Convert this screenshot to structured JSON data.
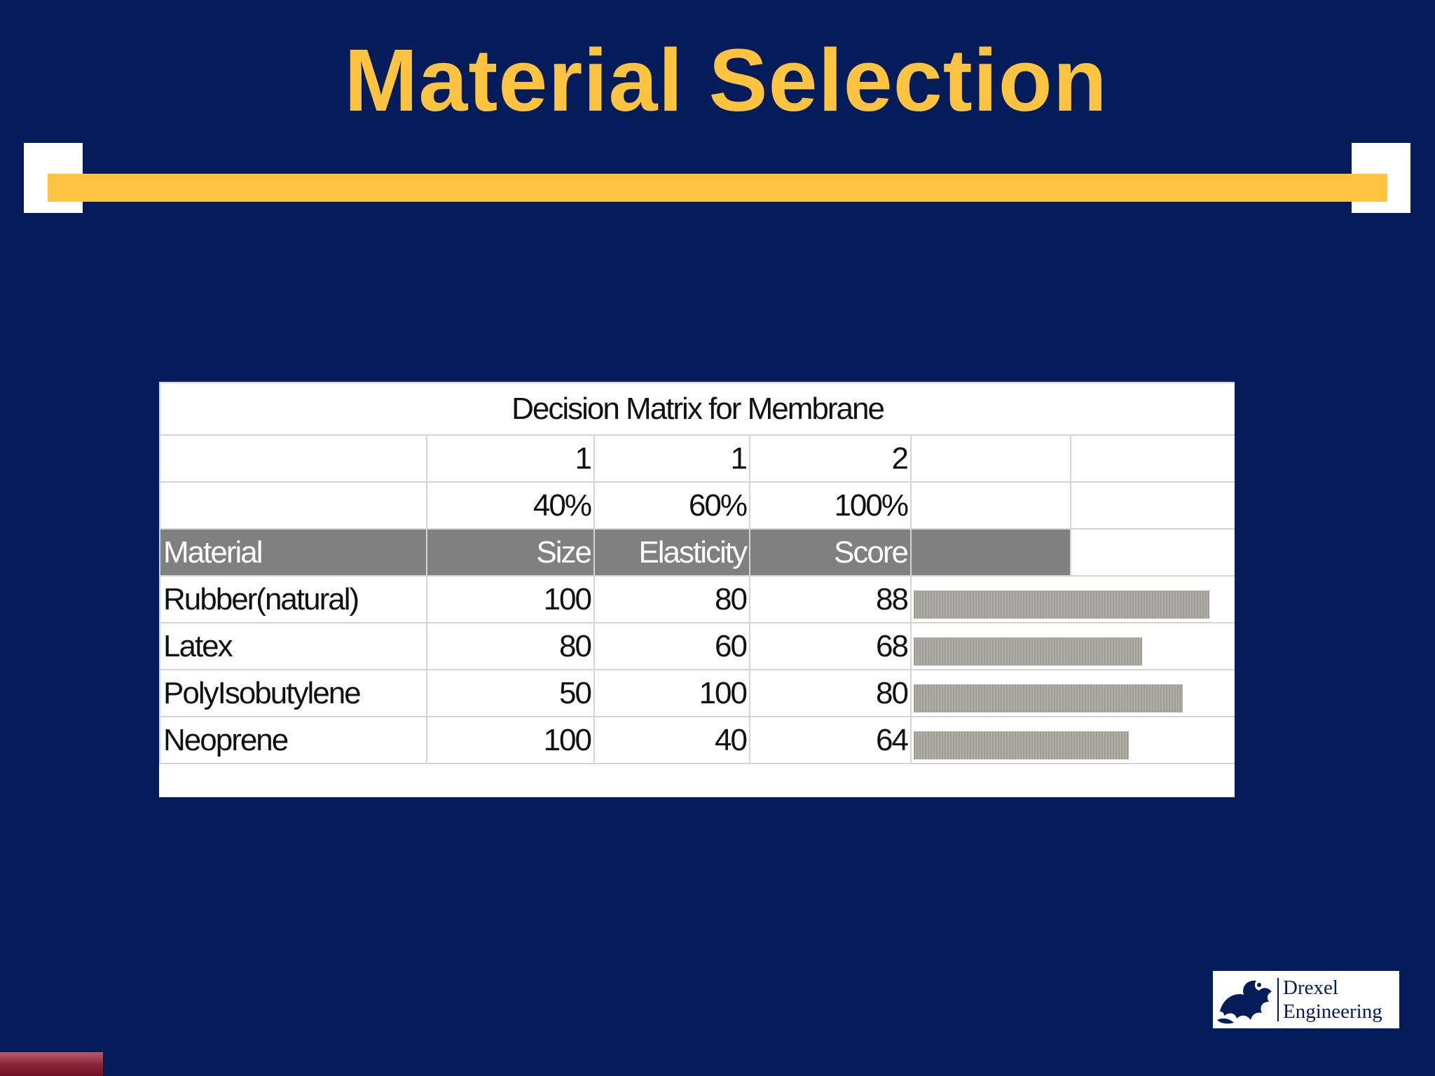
{
  "slide": {
    "title": "Material Selection"
  },
  "matrix": {
    "caption": "Decision Matrix for Membrane",
    "weights": [
      "1",
      "1",
      "2"
    ],
    "percents": [
      "40%",
      "60%",
      "100%"
    ],
    "headers": [
      "Material",
      "Size",
      "Elasticity",
      "Score"
    ],
    "rows": [
      {
        "material": "Rubber(natural)",
        "size": "100",
        "elasticity": "80",
        "score": "88",
        "score_value": 88
      },
      {
        "material": "Latex",
        "size": "80",
        "elasticity": "60",
        "score": "68",
        "score_value": 68
      },
      {
        "material": "PolyIsobutylene",
        "size": "50",
        "elasticity": "100",
        "score": "80",
        "score_value": 80
      },
      {
        "material": "Neoprene",
        "size": "100",
        "elasticity": "40",
        "score": "64",
        "score_value": 64
      }
    ],
    "bar_max": 100
  },
  "logo": {
    "line1": "Drexel",
    "line2": "Engineering",
    "brand_color": "#041c5a"
  },
  "colors": {
    "background": "#041c5a",
    "accent": "#ffc342",
    "header_fill": "#808080"
  }
}
